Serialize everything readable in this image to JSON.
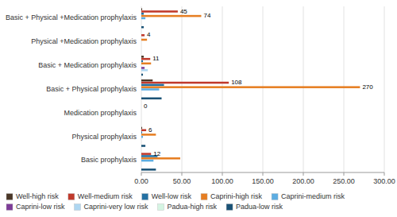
{
  "chart_data": {
    "type": "bar",
    "orientation": "horizontal",
    "categories": [
      "Basic + Physical +Medication prophylaxis",
      "Physical +Medication prophylaxis",
      "Basic + Medication prophylaxis",
      "Basic + Physical prophylaxis",
      "Medication prophylaxis",
      "Physical prophylaxis",
      "Basic prophylaxis"
    ],
    "series": [
      {
        "name": "Well-high risk",
        "color": "#4a3728",
        "values": [
          1,
          0,
          3,
          14,
          0,
          1,
          0
        ]
      },
      {
        "name": "Well-medium risk",
        "color": "#c0392b",
        "values": [
          45,
          4,
          11,
          108,
          0,
          6,
          12
        ]
      },
      {
        "name": "Well-low risk",
        "color": "#2471a3",
        "values": [
          3,
          0,
          2,
          28,
          0,
          1,
          20
        ]
      },
      {
        "name": "Caprini-high risk",
        "color": "#e67e22",
        "values": [
          74,
          7,
          12,
          270,
          0,
          18,
          48
        ]
      },
      {
        "name": "Caprini-medium risk",
        "color": "#5dade2",
        "values": [
          5,
          0,
          0,
          22,
          0,
          2,
          15
        ]
      },
      {
        "name": "Caprini-low risk",
        "color": "#7d3c98",
        "values": [
          0,
          0,
          4,
          0,
          0,
          0,
          0
        ]
      },
      {
        "name": "Caprini-very low risk",
        "color": "#aed6f1",
        "values": [
          0,
          0,
          8,
          0,
          0,
          0,
          0
        ]
      },
      {
        "name": "Padua-high risk",
        "color": "#d5f5e3",
        "values": [
          0,
          0,
          0,
          0,
          0,
          0,
          0
        ]
      },
      {
        "name": "Padua-low risk",
        "color": "#1a5276",
        "values": [
          3,
          0,
          2,
          25,
          0,
          5,
          18
        ]
      }
    ],
    "xlim": [
      0,
      300
    ],
    "xticks": [
      {
        "value": 0,
        "label": "0.00"
      },
      {
        "value": 50,
        "label": "50.00"
      },
      {
        "value": 100,
        "label": "100.00"
      },
      {
        "value": 150,
        "label": "150.00"
      },
      {
        "value": 200,
        "label": "200.00"
      },
      {
        "value": 250,
        "label": "250.00"
      },
      {
        "value": 300,
        "label": "300.00"
      }
    ],
    "grid": true,
    "legend": "bottom",
    "annotations": [
      {
        "text": "74",
        "x": 74,
        "category": "Basic + Physical +Medication prophylaxis",
        "series": "Caprini-high risk"
      },
      {
        "text": "45",
        "x": 45,
        "category": "Basic + Physical +Medication prophylaxis",
        "series": "Well-medium risk"
      },
      {
        "text": "4",
        "x": 4,
        "category": "Physical +Medication prophylaxis",
        "series": "Well-medium risk"
      },
      {
        "text": "11",
        "x": 11,
        "category": "Basic + Medication prophylaxis",
        "series": "Well-medium risk"
      },
      {
        "text": "270",
        "x": 270,
        "category": "Basic + Physical prophylaxis",
        "series": "Caprini-high risk"
      },
      {
        "text": "108",
        "x": 108,
        "category": "Basic + Physical prophylaxis",
        "series": "Well-medium risk"
      },
      {
        "text": "0",
        "x": 0,
        "category": "Medication prophylaxis",
        "series": "Well-medium risk"
      },
      {
        "text": "6",
        "x": 6,
        "category": "Physical prophylaxis",
        "series": "Well-medium risk"
      },
      {
        "text": "12",
        "x": 12,
        "category": "Basic prophylaxis",
        "series": "Well-medium risk"
      }
    ]
  }
}
